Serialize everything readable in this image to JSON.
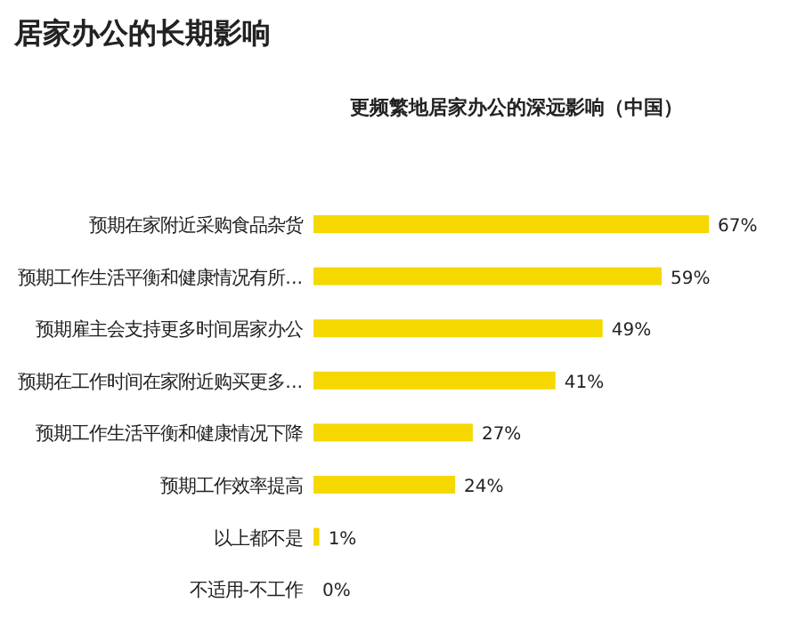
{
  "chart_data": {
    "type": "bar",
    "orientation": "horizontal",
    "title": "居家办公的长期影响",
    "subtitle": "更频繁地居家办公的深远影响（中国）",
    "categories": [
      "预期在家附近采购食品杂货",
      "预期工作生活平衡和健康情况有所...",
      "预期雇主会支持更多时间居家办公",
      "预期在工作时间在家附近购买更多...",
      "预期工作生活平衡和健康情况下降",
      "预期工作效率提高",
      "以上都不是",
      "不适用-不工作"
    ],
    "values": [
      67,
      59,
      49,
      41,
      27,
      24,
      1,
      0
    ],
    "value_labels": [
      "67%",
      "59%",
      "49%",
      "41%",
      "27%",
      "24%",
      "1%",
      "0%"
    ],
    "color": "#f5d800"
  }
}
